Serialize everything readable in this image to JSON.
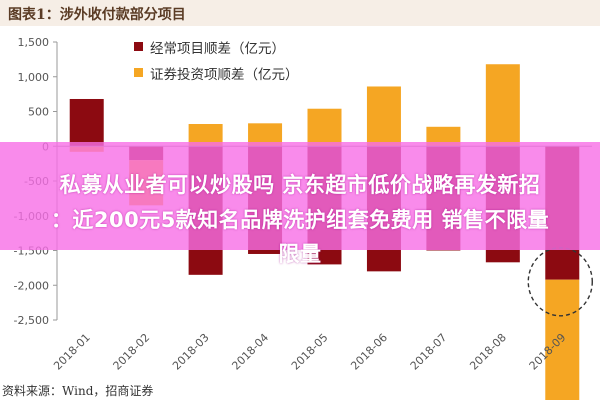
{
  "figure_title": "图表1：涉外收付款部分项目",
  "source_note": "资料来源：Wind，招商证券",
  "banner": {
    "line1": "私募从业者可以炒股吗 京东超市低价战略再发新招",
    "line2": "：近200元5款知名品牌洗护组套免费用 销售不限量",
    "line3": "限量"
  },
  "colors": {
    "series_dark": "#8c0a11",
    "series_orange": "#f5a623",
    "axis": "#999999",
    "tick_text": "#555555",
    "dashed_circle": "#333333"
  },
  "chart_data": {
    "type": "bar",
    "title": "",
    "xlabel": "",
    "ylabel": "",
    "ylim": [
      -2500,
      1500
    ],
    "yticks": [
      1500,
      1000,
      500,
      0,
      -500,
      -1000,
      -1500,
      -2000,
      -2500
    ],
    "ytick_labels": [
      "1,500",
      "1,000",
      "500",
      "0",
      "-500",
      "-1,000",
      "-1,500",
      "-2,000",
      "-2,500"
    ],
    "categories": [
      "2018-01",
      "2018-02",
      "2018-03",
      "2018-04",
      "2018-05",
      "2018-06",
      "2018-07",
      "2018-08",
      "2018-09"
    ],
    "series": [
      {
        "name": "经常项目顺差（亿元）",
        "color": "#8c0a11",
        "values": [
          680,
          -200,
          -1850,
          -1550,
          -1700,
          -1800,
          -1500,
          -1670,
          -1920
        ]
      },
      {
        "name": "证券投资项顺差（亿元）",
        "color": "#f5a623",
        "values": [
          -80,
          -650,
          320,
          330,
          540,
          860,
          280,
          1180,
          -2000
        ]
      }
    ],
    "legend_position": "top-left",
    "grid": false,
    "annotation": "dashed circle around 2018-09"
  }
}
